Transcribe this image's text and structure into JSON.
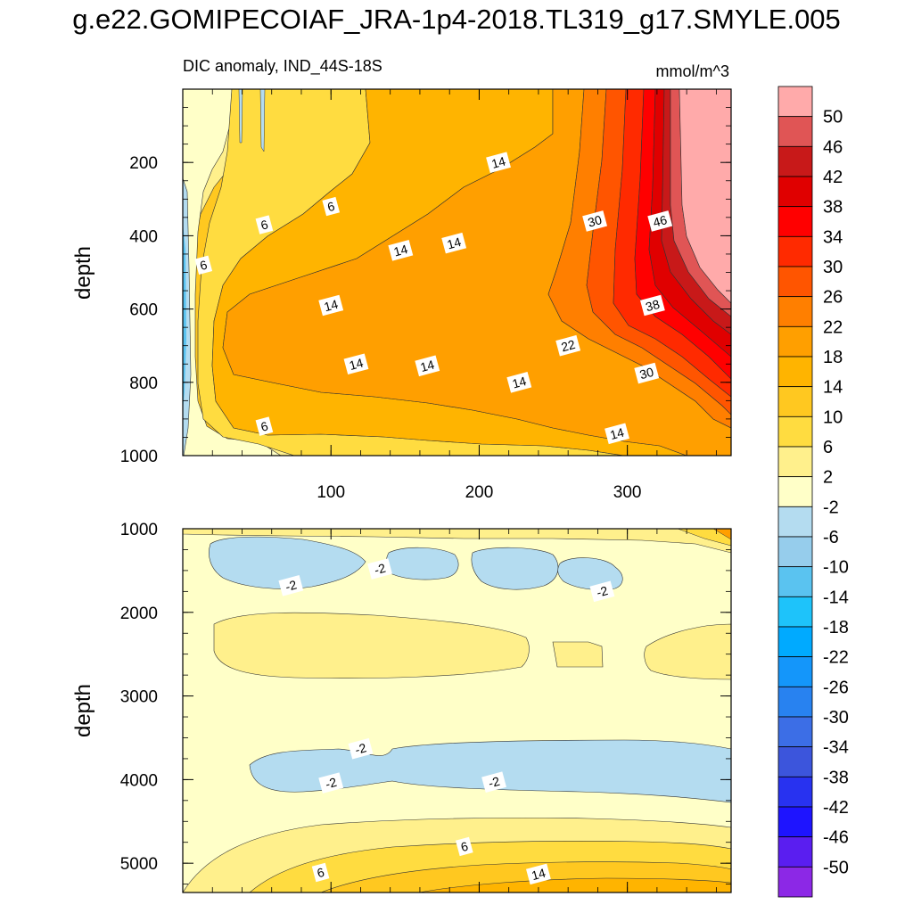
{
  "figure": {
    "title": "g.e22.GOMIPECOIAF_JRA-1p4-2018.TL319_g17.SMYLE.005"
  },
  "chart_data": {
    "type": "heatmap",
    "subtitle_left": "DIC anomaly, IND_44S-18S",
    "units": "mmol/m^3",
    "xlabel": "",
    "ylabel": "depth",
    "x_range": [
      0,
      370
    ],
    "x_ticks": [
      100,
      200,
      300
    ],
    "grid": false,
    "legend": "right",
    "panels": [
      {
        "name": "upper",
        "ylim": [
          0,
          1000
        ],
        "y_ticks": [
          200,
          400,
          600,
          800,
          1000
        ],
        "contour_labels": [
          {
            "x": 14,
            "y": 480,
            "value": "6"
          },
          {
            "x": 55,
            "y": 370,
            "value": "6"
          },
          {
            "x": 100,
            "y": 320,
            "value": "6"
          },
          {
            "x": 55,
            "y": 920,
            "value": "6"
          },
          {
            "x": 100,
            "y": 590,
            "value": "14"
          },
          {
            "x": 147,
            "y": 440,
            "value": "14"
          },
          {
            "x": 183,
            "y": 420,
            "value": "14"
          },
          {
            "x": 213,
            "y": 200,
            "value": "14"
          },
          {
            "x": 117,
            "y": 750,
            "value": "14"
          },
          {
            "x": 165,
            "y": 755,
            "value": "14"
          },
          {
            "x": 227,
            "y": 800,
            "value": "14"
          },
          {
            "x": 293,
            "y": 940,
            "value": "14"
          },
          {
            "x": 260,
            "y": 700,
            "value": "22"
          },
          {
            "x": 278,
            "y": 360,
            "value": "30"
          },
          {
            "x": 313,
            "y": 775,
            "value": "30"
          },
          {
            "x": 317,
            "y": 590,
            "value": "38"
          },
          {
            "x": 322,
            "y": 360,
            "value": "46"
          }
        ]
      },
      {
        "name": "lower",
        "ylim": [
          1000,
          5350
        ],
        "y_ticks": [
          1000,
          2000,
          3000,
          4000,
          5000
        ],
        "contour_labels": [
          {
            "x": 73,
            "y": 1680,
            "value": "-2"
          },
          {
            "x": 133,
            "y": 1480,
            "value": "-2"
          },
          {
            "x": 283,
            "y": 1750,
            "value": "-2"
          },
          {
            "x": 120,
            "y": 3630,
            "value": "-2"
          },
          {
            "x": 100,
            "y": 4040,
            "value": "-2"
          },
          {
            "x": 210,
            "y": 4030,
            "value": "-2"
          },
          {
            "x": 93,
            "y": 5110,
            "value": "6"
          },
          {
            "x": 190,
            "y": 4800,
            "value": "6"
          },
          {
            "x": 240,
            "y": 5130,
            "value": "14"
          }
        ]
      }
    ],
    "colorbar": {
      "labels": [
        "50",
        "46",
        "42",
        "38",
        "34",
        "30",
        "26",
        "22",
        "18",
        "14",
        "10",
        "6",
        "2",
        "-2",
        "-6",
        "-10",
        "-14",
        "-18",
        "-22",
        "-26",
        "-30",
        "-34",
        "-38",
        "-42",
        "-46",
        "-50"
      ],
      "colors": [
        "#ffaaaa",
        "#e05555",
        "#c81919",
        "#e00000",
        "#ff0000",
        "#ff2a00",
        "#ff5500",
        "#ff7f00",
        "#ff9f00",
        "#ffb400",
        "#ffc820",
        "#ffdc40",
        "#fff08c",
        "#ffffc8",
        "#b4dcf0",
        "#96cdec",
        "#5ac3f0",
        "#1ec3fa",
        "#00aaff",
        "#1496fa",
        "#2882f0",
        "#3c6ee6",
        "#3c55dc",
        "#2832f0",
        "#1e14ff",
        "#5a1ef0",
        "#8c28e6"
      ]
    }
  }
}
